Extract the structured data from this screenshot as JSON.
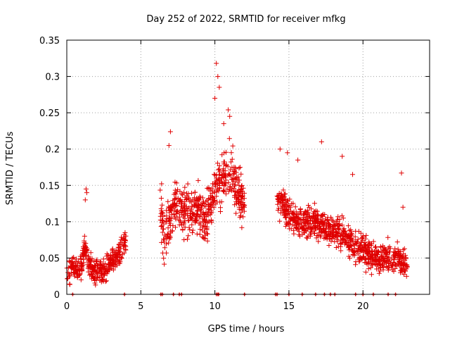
{
  "chart_data": {
    "type": "scatter",
    "title": "Day 252 of 2022, SRMTID for receiver mfkg",
    "xlabel": "GPS time / hours",
    "ylabel": "SRMTID / TECUs",
    "xlim": [
      0,
      24.5
    ],
    "ylim": [
      0,
      0.35
    ],
    "xticks": [
      0,
      5,
      10,
      15,
      20
    ],
    "yticks": [
      0,
      0.05,
      0.1,
      0.15,
      0.2,
      0.25,
      0.3,
      0.35
    ],
    "xtick_labels": [
      "0",
      "5",
      "10",
      "15",
      "20"
    ],
    "ytick_labels": [
      "0",
      "0.05",
      "0.1",
      "0.15",
      "0.2",
      "0.25",
      "0.3",
      "0.35"
    ],
    "grid": true,
    "marker": "+",
    "color": "#e00000",
    "series": [
      {
        "name": "SRMTID",
        "segments": [
          {
            "x_range": [
              0,
              4.0
            ],
            "samples": [
              [
                0.0,
                0.035
              ],
              [
                0.2,
                0.03
              ],
              [
                0.4,
                0.04
              ],
              [
                0.6,
                0.035
              ],
              [
                0.8,
                0.03
              ],
              [
                1.0,
                0.04
              ],
              [
                1.2,
                0.065
              ],
              [
                1.4,
                0.05
              ],
              [
                1.6,
                0.04
              ],
              [
                1.8,
                0.035
              ],
              [
                2.0,
                0.03
              ],
              [
                2.2,
                0.035
              ],
              [
                2.4,
                0.03
              ],
              [
                2.6,
                0.035
              ],
              [
                2.8,
                0.04
              ],
              [
                3.0,
                0.045
              ],
              [
                3.2,
                0.05
              ],
              [
                3.4,
                0.05
              ],
              [
                3.6,
                0.06
              ],
              [
                3.8,
                0.07
              ],
              [
                4.0,
                0.08
              ]
            ],
            "spread": 0.012
          },
          {
            "x_range": [
              6.3,
              12.0
            ],
            "samples": [
              [
                6.3,
                0.12
              ],
              [
                6.6,
                0.08
              ],
              [
                7.0,
                0.1
              ],
              [
                7.4,
                0.125
              ],
              [
                7.8,
                0.12
              ],
              [
                8.2,
                0.11
              ],
              [
                8.6,
                0.12
              ],
              [
                9.0,
                0.115
              ],
              [
                9.4,
                0.1
              ],
              [
                9.8,
                0.13
              ],
              [
                10.2,
                0.15
              ],
              [
                10.6,
                0.16
              ],
              [
                11.0,
                0.17
              ],
              [
                11.4,
                0.15
              ],
              [
                11.8,
                0.13
              ],
              [
                12.0,
                0.13
              ]
            ],
            "spread": 0.025
          },
          {
            "x_range": [
              14.2,
              23.0
            ],
            "samples": [
              [
                14.2,
                0.13
              ],
              [
                14.6,
                0.125
              ],
              [
                15.0,
                0.11
              ],
              [
                15.5,
                0.1
              ],
              [
                16.0,
                0.1
              ],
              [
                16.5,
                0.1
              ],
              [
                17.0,
                0.095
              ],
              [
                17.5,
                0.09
              ],
              [
                18.0,
                0.09
              ],
              [
                18.5,
                0.085
              ],
              [
                19.0,
                0.075
              ],
              [
                19.5,
                0.065
              ],
              [
                20.0,
                0.06
              ],
              [
                20.5,
                0.055
              ],
              [
                21.0,
                0.05
              ],
              [
                21.5,
                0.05
              ],
              [
                22.0,
                0.05
              ],
              [
                22.5,
                0.045
              ],
              [
                23.0,
                0.04
              ]
            ],
            "spread": 0.015
          }
        ],
        "outliers": [
          [
            10.1,
            0.318
          ],
          [
            10.2,
            0.3
          ],
          [
            10.3,
            0.285
          ],
          [
            10.0,
            0.27
          ],
          [
            10.9,
            0.254
          ],
          [
            11.0,
            0.245
          ],
          [
            10.6,
            0.235
          ],
          [
            7.0,
            0.224
          ],
          [
            6.9,
            0.205
          ],
          [
            17.2,
            0.21
          ],
          [
            14.4,
            0.2
          ],
          [
            14.9,
            0.195
          ],
          [
            1.3,
            0.145
          ],
          [
            1.35,
            0.14
          ],
          [
            1.25,
            0.13
          ],
          [
            22.6,
            0.167
          ],
          [
            19.3,
            0.165
          ],
          [
            22.7,
            0.12
          ],
          [
            18.6,
            0.19
          ],
          [
            15.6,
            0.185
          ]
        ],
        "zero_marks": [
          0.4,
          3.9,
          6.35,
          6.45,
          7.2,
          7.6,
          7.75,
          10.1,
          10.2,
          10.25,
          12.0,
          14.1,
          14.2,
          15.0,
          15.9,
          16.8,
          17.4,
          17.8,
          18.1,
          19.5,
          20.0,
          20.7,
          21.7,
          22.2
        ]
      }
    ]
  }
}
